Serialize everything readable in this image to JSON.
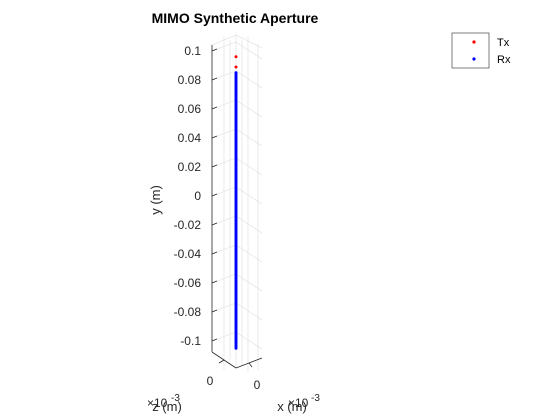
{
  "chart_data": {
    "type": "scatter",
    "title": "MIMO Synthetic Aperture",
    "xlabel": "x (m)",
    "ylabel": "y (m)",
    "zlabel": "z (m)",
    "x_exponent": "×10",
    "x_exponent_power": "-3",
    "z_exponent": "×10",
    "z_exponent_power": "-3",
    "y_ticks": [
      "0.1",
      "0.08",
      "0.06",
      "0.04",
      "0.02",
      "0",
      "-0.02",
      "-0.04",
      "-0.06",
      "-0.08",
      "-0.1"
    ],
    "y_tick_values": [
      0.1,
      0.08,
      0.06,
      0.04,
      0.02,
      0,
      -0.02,
      -0.04,
      -0.06,
      -0.08,
      -0.1
    ],
    "x_ticks": [
      "0"
    ],
    "z_ticks": [
      "0"
    ],
    "ylim": [
      -0.11,
      0.11
    ],
    "grid": true,
    "legend_position": "top-right",
    "series": [
      {
        "name": "Tx",
        "color": "#ff0000",
        "x": [
          0,
          0
        ],
        "y": [
          0.096,
          0.089
        ]
      },
      {
        "name": "Rx",
        "color": "#0000ff",
        "x": [
          0
        ],
        "y_start": 0.085,
        "y_end": -0.105,
        "y_step": 0.001
      }
    ]
  }
}
